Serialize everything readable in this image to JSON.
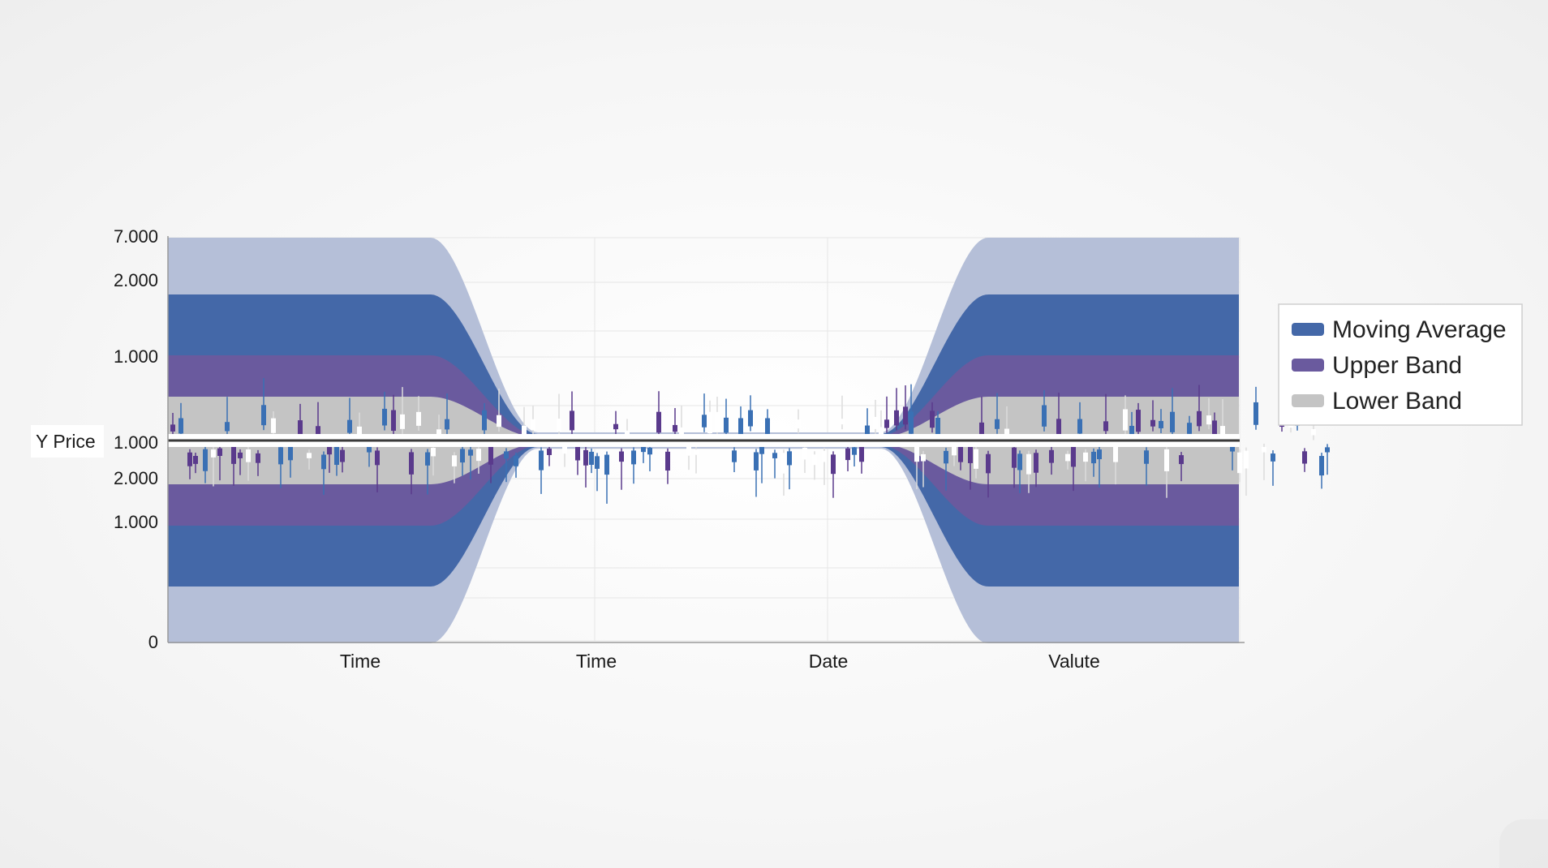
{
  "colors": {
    "outer_band": "#b5bfd8",
    "moving_average": "#4468a8",
    "upper_band": "#6a5a9e",
    "lower_band": "#c4c4c4",
    "center_line": "#3a3a3a",
    "candle_blue": "#3a70b4",
    "candle_purple": "#5a3a8c",
    "candle_white": "#ffffff",
    "grid": "#e6e6e6"
  },
  "chart_data": {
    "type": "line",
    "title": "",
    "xlabel": "",
    "ylabel": "Y Price",
    "y_tick_labels_upper": [
      "7.000",
      "2.000",
      "1.000"
    ],
    "y_tick_label_center": "1.000",
    "y_tick_labels_lower": [
      "2.000",
      "1.000",
      "0"
    ],
    "x_tick_labels": [
      "Time",
      "Time",
      "Date",
      "Valute"
    ],
    "grid": true,
    "legend_position": "right",
    "series": [
      {
        "name": "Moving Average",
        "color": "#4468a8"
      },
      {
        "name": "Upper Band",
        "color": "#6a5a9e"
      },
      {
        "name": "Lower Band",
        "color": "#c4c4c4"
      }
    ]
  }
}
